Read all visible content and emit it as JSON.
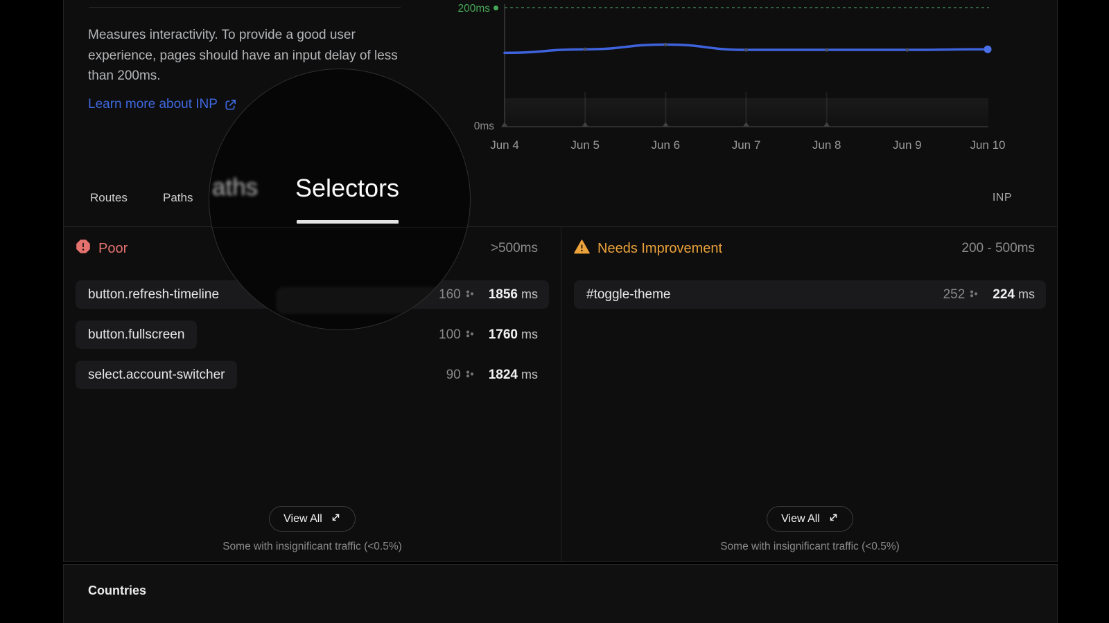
{
  "metric_card": {
    "description": "Measures interactivity. To provide a good user experience, pages should have an input delay of less than 200ms.",
    "link_label": "Learn more about INP",
    "metric_badge": "INP",
    "tabs": {
      "routes": "Routes",
      "paths": "Paths",
      "selectors": "Selectors"
    },
    "loupe": {
      "magnified_partial": "aths",
      "magnified_tab": "Selectors"
    },
    "poor_panel": {
      "title": "Poor",
      "range": ">500ms",
      "rows": [
        {
          "selector": "button.refresh-timeline",
          "count": "160",
          "value": "1856",
          "unit": "ms"
        },
        {
          "selector": "button.fullscreen",
          "count": "100",
          "value": "1760",
          "unit": "ms"
        },
        {
          "selector": "select.account-switcher",
          "count": "90",
          "value": "1824",
          "unit": "ms"
        }
      ],
      "view_all": "View All",
      "footnote": "Some with insignificant traffic (<0.5%)"
    },
    "improve_panel": {
      "title": "Needs Improvement",
      "range": "200 - 500ms",
      "rows": [
        {
          "selector": "#toggle-theme",
          "count": "252",
          "value": "224",
          "unit": "ms"
        }
      ],
      "view_all": "View All",
      "footnote": "Some with insignificant traffic (<0.5%)"
    }
  },
  "countries": {
    "title": "Countries"
  },
  "chart_data": {
    "type": "line",
    "x": [
      "Jun 4",
      "Jun 5",
      "Jun 6",
      "Jun 7",
      "Jun 8",
      "Jun 9",
      "Jun 10"
    ],
    "series": [
      {
        "name": "INP",
        "values": [
          124,
          130,
          138,
          129,
          129,
          129,
          130
        ]
      }
    ],
    "unit": "ms",
    "ylim": [
      0,
      200
    ],
    "y_tick_top_label": "200ms",
    "y_tick_bottom_label": "0ms",
    "threshold": {
      "value": 200,
      "label": "200ms",
      "color": "#46a758"
    },
    "line_color": "#3e63dd",
    "endpoint_color": "#4a70e8",
    "grid": false,
    "legend": "none"
  }
}
